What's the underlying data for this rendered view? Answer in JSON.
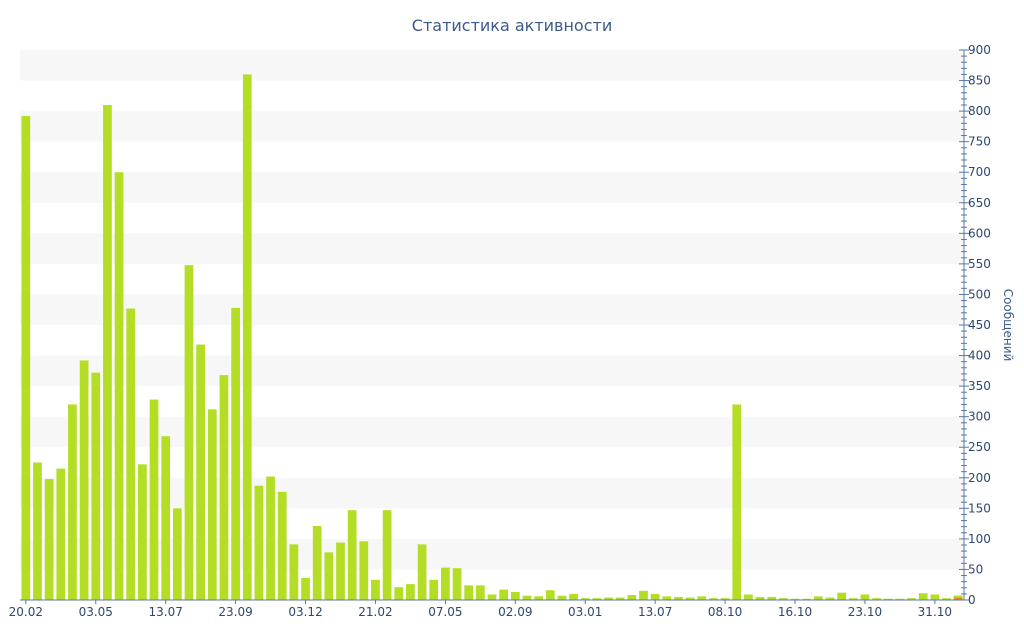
{
  "colors": {
    "bar": "#b4de26",
    "bar_highlight": "#e68a1a",
    "band": "#f7f7f7",
    "axis": "#5a78a6",
    "text": "#2c4870"
  },
  "chart_data": {
    "type": "bar",
    "title": "Статистика активности",
    "xlabel": "",
    "ylabel": "Сообщений",
    "ylim": [
      0,
      900
    ],
    "y_ticks": [
      0,
      50,
      100,
      150,
      200,
      250,
      300,
      350,
      400,
      450,
      500,
      550,
      600,
      650,
      700,
      750,
      800,
      850,
      900
    ],
    "y_axis_side": "right",
    "grid": "alternating horizontal bands",
    "legend": "none",
    "x_tick_labels": [
      {
        "index": 0,
        "label": "20.02"
      },
      {
        "index": 6,
        "label": "03.05"
      },
      {
        "index": 12,
        "label": "13.07"
      },
      {
        "index": 18,
        "label": "23.09"
      },
      {
        "index": 24,
        "label": "03.12"
      },
      {
        "index": 30,
        "label": "21.02"
      },
      {
        "index": 36,
        "label": "07.05"
      },
      {
        "index": 42,
        "label": "02.09"
      },
      {
        "index": 48,
        "label": "03.01"
      },
      {
        "index": 54,
        "label": "13.07"
      },
      {
        "index": 60,
        "label": "08.10"
      },
      {
        "index": 66,
        "label": "16.10"
      },
      {
        "index": 72,
        "label": "23.10"
      },
      {
        "index": 78,
        "label": "31.10"
      }
    ],
    "values": [
      792,
      225,
      198,
      215,
      320,
      392,
      372,
      810,
      700,
      477,
      222,
      328,
      268,
      150,
      548,
      418,
      312,
      368,
      478,
      860,
      187,
      202,
      177,
      91,
      36,
      121,
      78,
      94,
      147,
      96,
      33,
      147,
      21,
      26,
      91,
      33,
      53,
      52,
      24,
      24,
      9,
      17,
      13,
      7,
      6,
      16,
      7,
      10,
      3,
      3,
      4,
      4,
      8,
      15,
      10,
      6,
      5,
      4,
      6,
      3,
      3,
      320,
      9,
      5,
      5,
      3,
      2,
      2,
      6,
      4,
      12,
      3,
      9,
      3,
      2,
      2,
      3,
      11,
      9,
      3,
      7
    ],
    "highlight_index": 80
  }
}
